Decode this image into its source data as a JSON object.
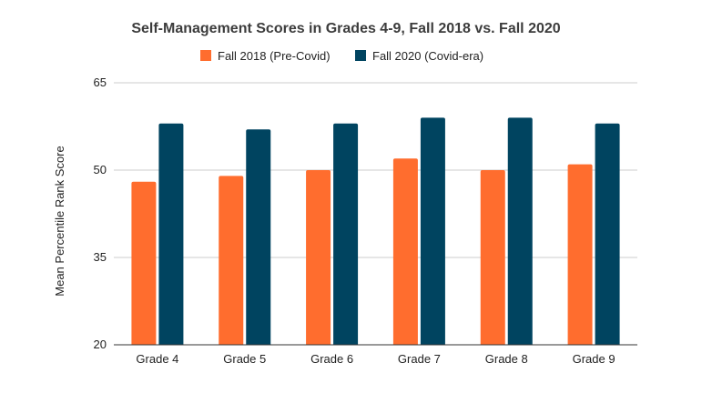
{
  "chart_data": {
    "type": "bar",
    "title": "Self-Management Scores in Grades 4-9, Fall 2018 vs. Fall 2020",
    "xlabel": "",
    "ylabel": "Mean Percentile Rank Score",
    "categories": [
      "Grade 4",
      "Grade 5",
      "Grade 6",
      "Grade 7",
      "Grade 8",
      "Grade 9"
    ],
    "series": [
      {
        "name": "Fall 2018 (Pre-Covid)",
        "color": "#ff6d2e",
        "values": [
          48,
          49,
          50,
          52,
          50,
          51
        ]
      },
      {
        "name": "Fall 2020 (Covid-era)",
        "color": "#004460",
        "values": [
          58,
          57,
          58,
          59,
          59,
          58
        ]
      }
    ],
    "ylim": [
      20,
      65
    ],
    "yticks": [
      "20",
      "35",
      "50",
      "65"
    ],
    "grid": true,
    "legend_position": "top"
  }
}
